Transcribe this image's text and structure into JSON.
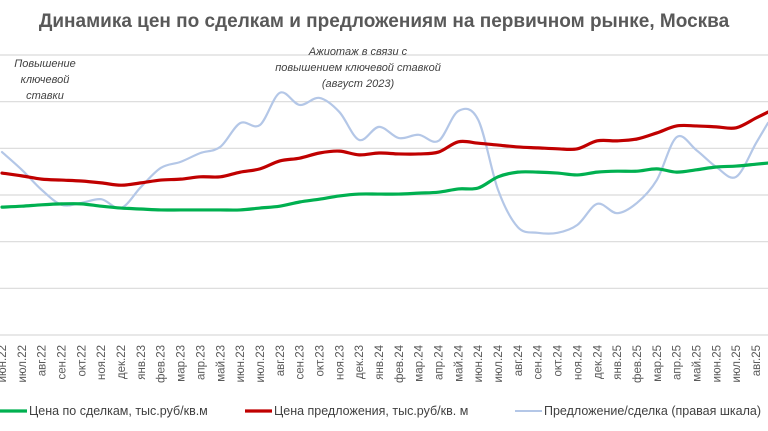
{
  "chart_data": {
    "type": "line",
    "title": "Динамика цен по сделкам и предложениям на первичном рынке, Москва",
    "xlabel": "",
    "ylabel": "",
    "y_units_note_hidden": null,
    "ylim": [
      0,
      6
    ],
    "grid": true,
    "legend_position": "bottom",
    "categories": [
      "июн.22",
      "июл.22",
      "авг.22",
      "сен.22",
      "окт.22",
      "ноя.22",
      "дек.22",
      "янв.23",
      "фев.23",
      "мар.23",
      "апр.23",
      "май.23",
      "июн.23",
      "июл.23",
      "авг.23",
      "сен.23",
      "окт.23",
      "ноя.23",
      "дек.23",
      "янв.24",
      "фев.24",
      "мар.24",
      "апр.24",
      "май.24",
      "июн.24",
      "июл.24",
      "авг.24",
      "сен.24",
      "окт.24",
      "ноя.24",
      "дек.24",
      "янв.25",
      "фев.25",
      "мар.25",
      "апр.25",
      "май.25",
      "июн.25",
      "июл.25",
      "авг.25"
    ],
    "series": [
      {
        "name": "Цена по сделкам, тыс.руб/кв.м",
        "color": "#00b050",
        "axis": "left",
        "values": [
          2.74,
          2.76,
          2.79,
          2.81,
          2.81,
          2.76,
          2.72,
          2.7,
          2.68,
          2.68,
          2.68,
          2.68,
          2.68,
          2.72,
          2.76,
          2.85,
          2.91,
          2.98,
          3.02,
          3.02,
          3.02,
          3.04,
          3.06,
          3.13,
          3.15,
          3.39,
          3.49,
          3.49,
          3.47,
          3.43,
          3.49,
          3.51,
          3.51,
          3.56,
          3.49,
          3.54,
          3.6,
          3.62,
          3.66
        ]
      },
      {
        "name": "Цена предложения, тыс.руб/кв. м",
        "color": "#c00000",
        "axis": "left",
        "values": [
          3.47,
          3.41,
          3.34,
          3.32,
          3.3,
          3.26,
          3.21,
          3.26,
          3.32,
          3.34,
          3.39,
          3.39,
          3.49,
          3.56,
          3.73,
          3.79,
          3.9,
          3.94,
          3.86,
          3.9,
          3.88,
          3.88,
          3.92,
          4.14,
          4.11,
          4.07,
          4.03,
          4.01,
          3.99,
          3.99,
          4.16,
          4.16,
          4.2,
          4.33,
          4.48,
          4.48,
          4.46,
          4.44,
          4.65
        ]
      },
      {
        "name": "Предложение/сделка (правая шкала)",
        "color": "#b4c7e7",
        "axis": "right",
        "values": [
          3.92,
          3.54,
          3.11,
          2.79,
          2.83,
          2.91,
          2.72,
          3.17,
          3.58,
          3.71,
          3.9,
          4.03,
          4.54,
          4.5,
          5.19,
          4.93,
          5.08,
          4.78,
          4.18,
          4.46,
          4.22,
          4.29,
          4.16,
          4.8,
          4.61,
          3.11,
          2.31,
          2.19,
          2.19,
          2.36,
          2.81,
          2.61,
          2.83,
          3.32,
          4.24,
          3.96,
          3.6,
          3.39,
          4.11
        ]
      }
    ],
    "annotations": [
      {
        "lines": [
          "Повышение",
          "ключевой",
          "ставки"
        ],
        "near": "июн.22"
      },
      {
        "lines": [
          "Ажиотаж в связи с",
          "повышением ключевой ставкой",
          "(август 2023)"
        ],
        "near": "авг.23"
      }
    ]
  }
}
